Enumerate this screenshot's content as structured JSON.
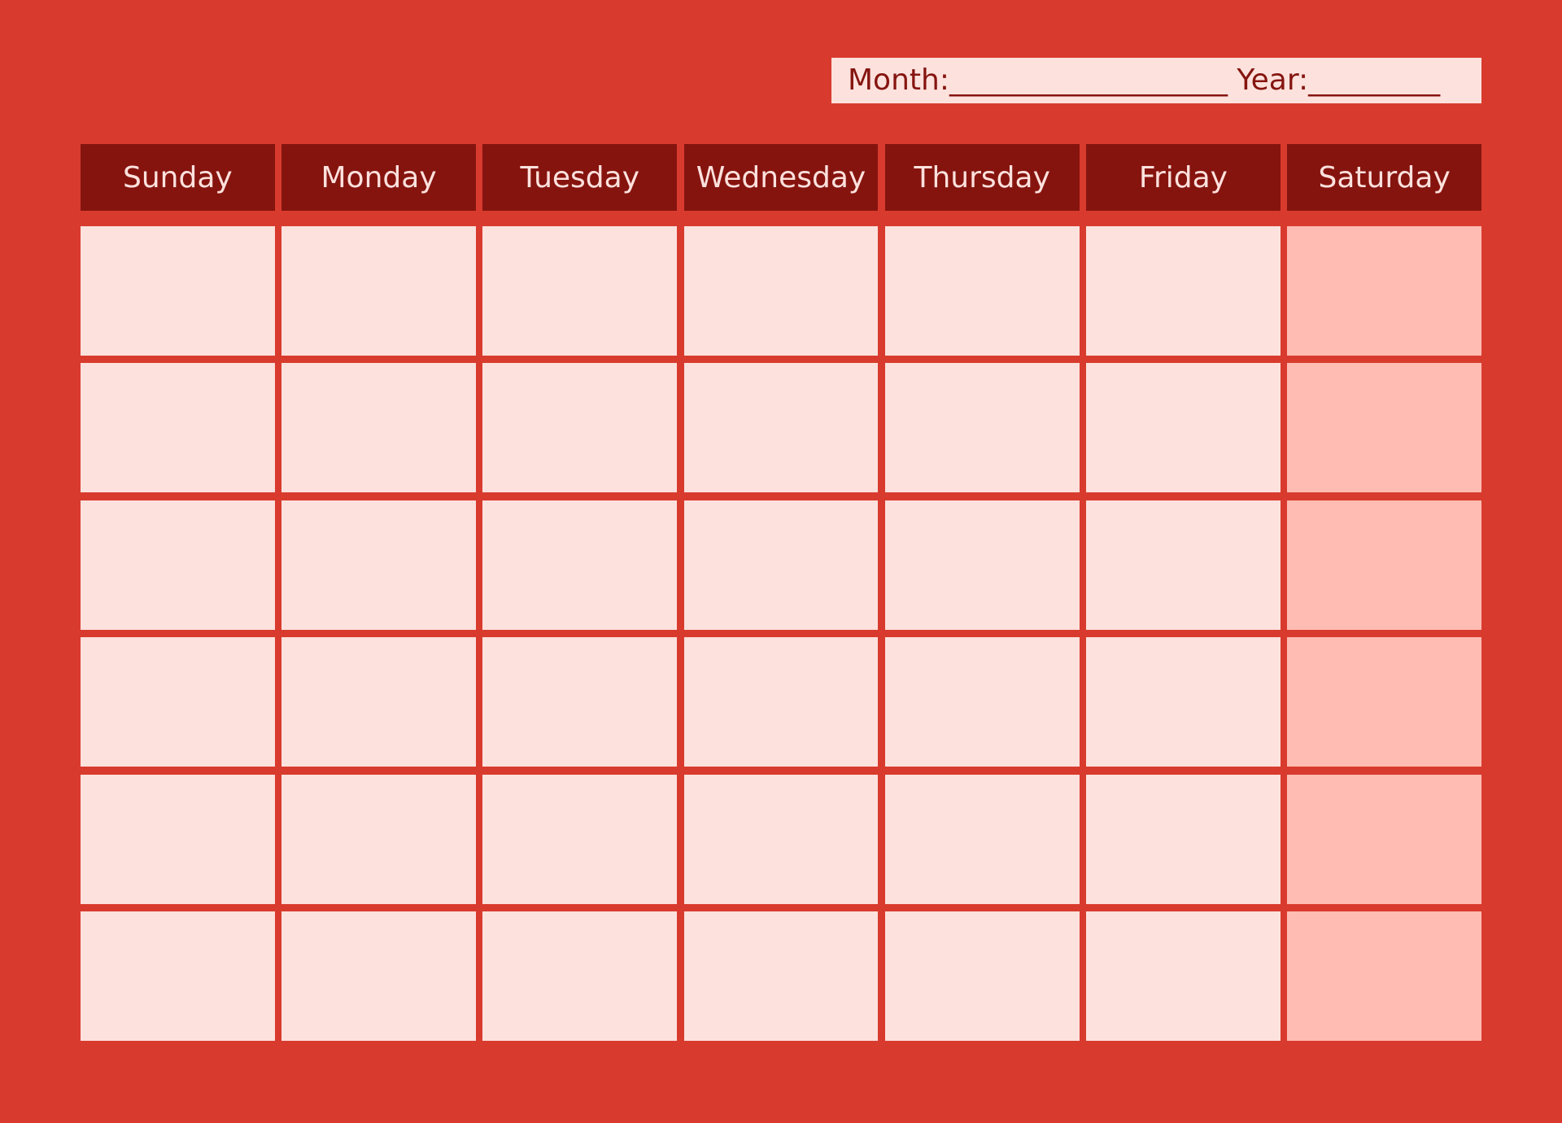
{
  "header": {
    "month_label": "Month:",
    "month_blank": "___________________",
    "year_label": "Year:",
    "year_blank": "_________"
  },
  "days": [
    "Sunday",
    "Monday",
    "Tuesday",
    "Wednesday",
    "Thursday",
    "Friday",
    "Saturday"
  ],
  "weeks": 6,
  "colors": {
    "background": "#D83B2D",
    "header": "#85140F",
    "cell": "#FDE1DD",
    "weekend_cell": "#FFBCB3"
  }
}
